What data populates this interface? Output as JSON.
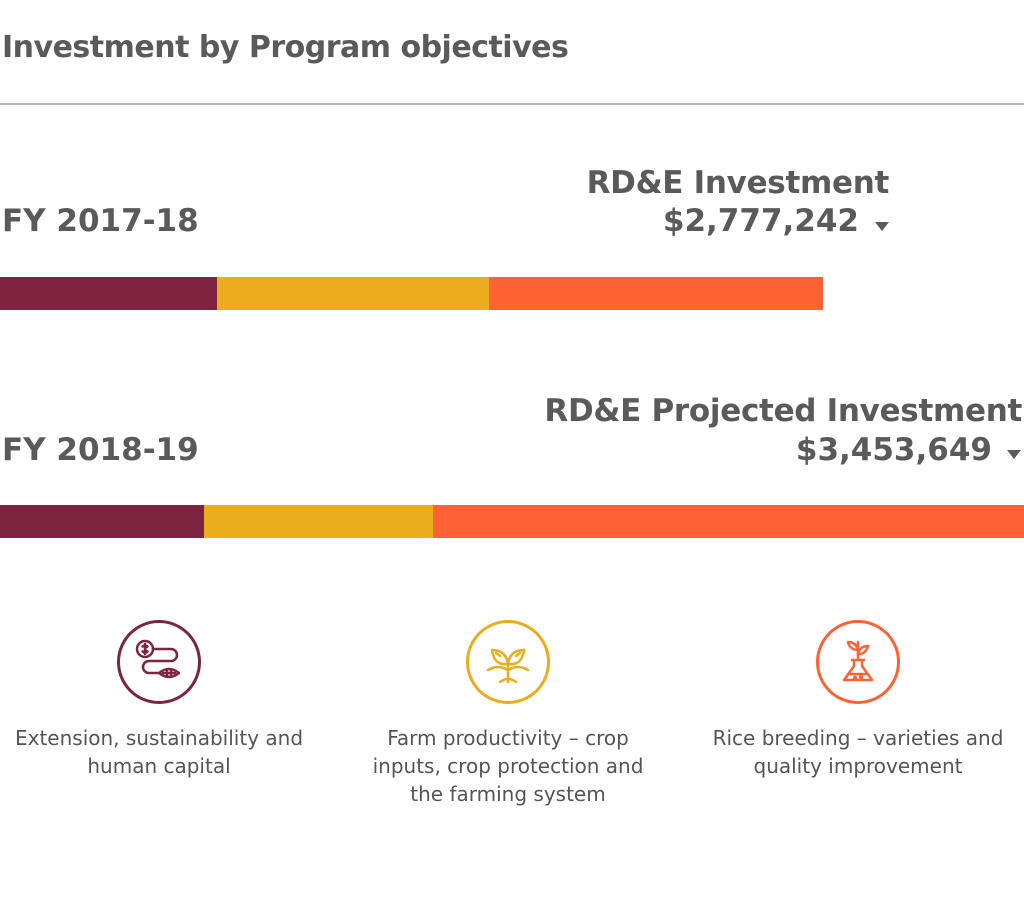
{
  "title": "Investment by Program objectives",
  "colors": {
    "extension": "#7d2440",
    "farm": "#ebac1e",
    "breeding": "#ff6235"
  },
  "rows": [
    {
      "year": "FY 2017-18",
      "investment_label": "RD&E Investment",
      "investment_amount": "$2,777,242",
      "total": 2777242,
      "shares": [
        0.264,
        0.33,
        0.406
      ]
    },
    {
      "year": "FY 2018-19",
      "investment_label": "RD&E Projected Investment",
      "investment_amount": "$3,453,649",
      "total": 3453649,
      "shares": [
        0.199,
        0.224,
        0.577
      ]
    }
  ],
  "legend": [
    {
      "label": "Extension, sustainability and human capital",
      "icon": "money-to-leaf-icon"
    },
    {
      "label": "Farm productivity – crop inputs, crop protection and the farming system",
      "icon": "sprouting-plant-icon"
    },
    {
      "label": "Rice breeding – varieties and quality improvement",
      "icon": "plant-in-flask-icon"
    }
  ],
  "chart_data": {
    "type": "bar",
    "orientation": "horizontal-stacked",
    "title": "Investment by Program objectives",
    "categories": [
      "FY 2017-18",
      "FY 2018-19"
    ],
    "totals": [
      2777242,
      3453649
    ],
    "series": [
      {
        "name": "Extension, sustainability and human capital",
        "values": [
          733192,
          687276
        ]
      },
      {
        "name": "Farm productivity – crop inputs, crop protection and the farming system",
        "values": [
          916490,
          773617
        ]
      },
      {
        "name": "Rice breeding – varieties and quality improvement",
        "values": [
          1127560,
          1992756
        ]
      }
    ]
  }
}
